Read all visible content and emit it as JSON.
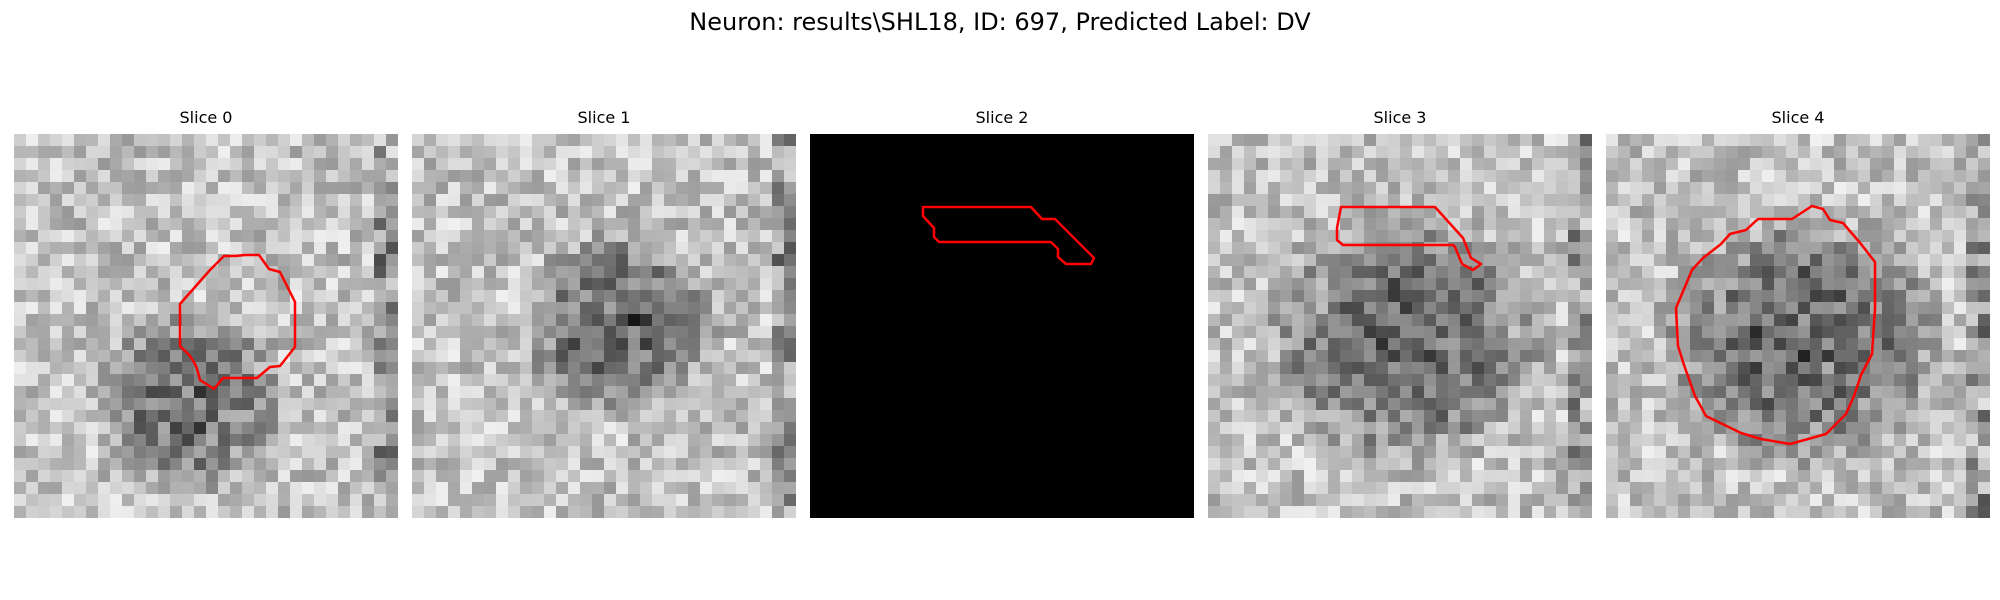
{
  "figure": {
    "title": "Neuron: results\\SHL18, ID: 697, Predicted Label: DV",
    "contour_color": "#ff0000",
    "colormap": "gray",
    "grid_size": 32
  },
  "slices": [
    {
      "label": "Slice 0",
      "pattern": "noisy-gray",
      "dark_region": "lower-left"
    },
    {
      "label": "Slice 1",
      "pattern": "noisy-gray",
      "dark_region": "center"
    },
    {
      "label": "Slice 2",
      "pattern": "black",
      "dark_region": "full"
    },
    {
      "label": "Slice 3",
      "pattern": "noisy-gray",
      "dark_region": "center-large"
    },
    {
      "label": "Slice 4",
      "pattern": "noisy-gray",
      "dark_region": "center-large"
    }
  ]
}
